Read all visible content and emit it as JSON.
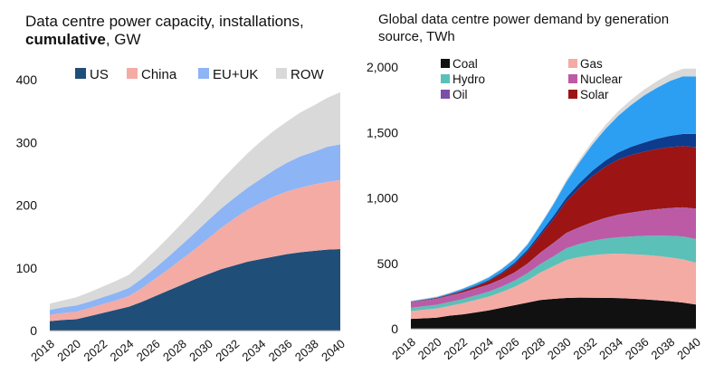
{
  "chart_data": [
    {
      "type": "area",
      "stacked": true,
      "title_plain": "Data centre power capacity, installations,",
      "title_bold": "cumulative",
      "title_suffix": ", GW",
      "x": [
        2018,
        2019,
        2020,
        2021,
        2022,
        2023,
        2024,
        2025,
        2026,
        2027,
        2028,
        2029,
        2030,
        2031,
        2032,
        2033,
        2034,
        2035,
        2036,
        2037,
        2038,
        2039,
        2040
      ],
      "x_tick_labels": [
        "2018",
        "2020",
        "2022",
        "2024",
        "2026",
        "2028",
        "2030",
        "2032",
        "2034",
        "2036",
        "2038",
        "2040"
      ],
      "ylim": [
        0,
        400
      ],
      "y_ticks": [
        0,
        100,
        200,
        300,
        400
      ],
      "legend_position": "top",
      "series": [
        {
          "name": "US",
          "color": "#1f4e79",
          "values": [
            15,
            17,
            18,
            23,
            28,
            33,
            38,
            46,
            55,
            64,
            73,
            82,
            90,
            98,
            104,
            110,
            114,
            118,
            122,
            125,
            127,
            129,
            130
          ]
        },
        {
          "name": "China",
          "color": "#f4aba4",
          "values": [
            10,
            11,
            12,
            13,
            14,
            15,
            17,
            22,
            28,
            34,
            41,
            48,
            57,
            66,
            75,
            83,
            90,
            96,
            100,
            103,
            106,
            108,
            110
          ]
        },
        {
          "name": "EU+UK",
          "color": "#8db4f5",
          "values": [
            8,
            9,
            10,
            10,
            11,
            12,
            13,
            15,
            17,
            20,
            23,
            26,
            29,
            31,
            33,
            35,
            38,
            42,
            46,
            50,
            52,
            56,
            57
          ]
        },
        {
          "name": "ROW",
          "color": "#d9d9d9",
          "values": [
            10,
            11,
            13,
            15,
            17,
            19,
            21,
            25,
            28,
            31,
            34,
            37,
            40,
            45,
            50,
            55,
            60,
            63,
            66,
            70,
            74,
            78,
            83
          ]
        }
      ]
    },
    {
      "type": "area",
      "stacked": true,
      "title": "Global data centre power demand by generation source, TWh",
      "x": [
        2018,
        2019,
        2020,
        2021,
        2022,
        2023,
        2024,
        2025,
        2026,
        2027,
        2028,
        2029,
        2030,
        2031,
        2032,
        2033,
        2034,
        2035,
        2036,
        2037,
        2038,
        2039,
        2040
      ],
      "x_tick_labels": [
        "2018",
        "2020",
        "2022",
        "2024",
        "2026",
        "2028",
        "2030",
        "2032",
        "2034",
        "2036",
        "2038",
        "2040"
      ],
      "ylim": [
        0,
        2000
      ],
      "y_ticks": [
        0,
        500,
        1000,
        1500,
        2000
      ],
      "y_tick_labels": [
        "0",
        "500",
        "1,000",
        "1,500",
        "2,000"
      ],
      "legend_position": "top-left",
      "series": [
        {
          "name": "Coal",
          "color": "#111111",
          "values": [
            75,
            80,
            85,
            100,
            110,
            125,
            140,
            160,
            180,
            200,
            220,
            228,
            235,
            238,
            237,
            236,
            234,
            230,
            225,
            218,
            210,
            200,
            185
          ]
        },
        {
          "name": "Gas",
          "color": "#f4aba4",
          "values": [
            60,
            65,
            70,
            75,
            85,
            95,
            105,
            120,
            140,
            170,
            210,
            250,
            290,
            310,
            325,
            335,
            340,
            340,
            340,
            338,
            335,
            330,
            320
          ]
        },
        {
          "name": "Hydro",
          "color": "#5bc0b8",
          "values": [
            25,
            27,
            28,
            30,
            32,
            35,
            38,
            42,
            48,
            55,
            65,
            75,
            90,
            100,
            110,
            118,
            125,
            135,
            145,
            155,
            165,
            175,
            180
          ]
        },
        {
          "name": "Nuclear",
          "color": "#bc5aa6",
          "values": [
            40,
            42,
            44,
            46,
            48,
            50,
            52,
            55,
            60,
            70,
            85,
            100,
            115,
            125,
            140,
            155,
            170,
            180,
            190,
            200,
            210,
            220,
            230
          ]
        },
        {
          "name": "Oil",
          "color": "#7b4fa8",
          "values": [
            3,
            3,
            3,
            3,
            3,
            3,
            3,
            3,
            3,
            3,
            3,
            3,
            3,
            3,
            3,
            3,
            3,
            3,
            3,
            3,
            3,
            3,
            3
          ]
        },
        {
          "name": "Solar",
          "color": "#9c1414",
          "values": [
            2,
            3,
            4,
            6,
            10,
            15,
            25,
            40,
            60,
            90,
            130,
            180,
            240,
            300,
            350,
            390,
            420,
            440,
            450,
            460,
            465,
            468,
            470
          ]
        },
        {
          "name": "",
          "color": "#0d3b8e",
          "values": [
            2,
            2,
            3,
            4,
            5,
            6,
            8,
            10,
            13,
            16,
            20,
            25,
            30,
            36,
            42,
            48,
            55,
            62,
            70,
            78,
            86,
            93,
            100
          ]
        },
        {
          "name": "",
          "color": "#2d9ff2",
          "values": [
            3,
            4,
            5,
            8,
            12,
            16,
            20,
            25,
            30,
            40,
            60,
            90,
            120,
            160,
            200,
            240,
            280,
            320,
            360,
            390,
            420,
            440,
            440
          ]
        },
        {
          "name": "",
          "color": "#d9d9d9",
          "values": [
            5,
            5,
            5,
            5,
            5,
            5,
            6,
            6,
            6,
            7,
            8,
            10,
            15,
            20,
            25,
            30,
            35,
            40,
            45,
            50,
            55,
            58,
            60
          ]
        }
      ]
    }
  ]
}
